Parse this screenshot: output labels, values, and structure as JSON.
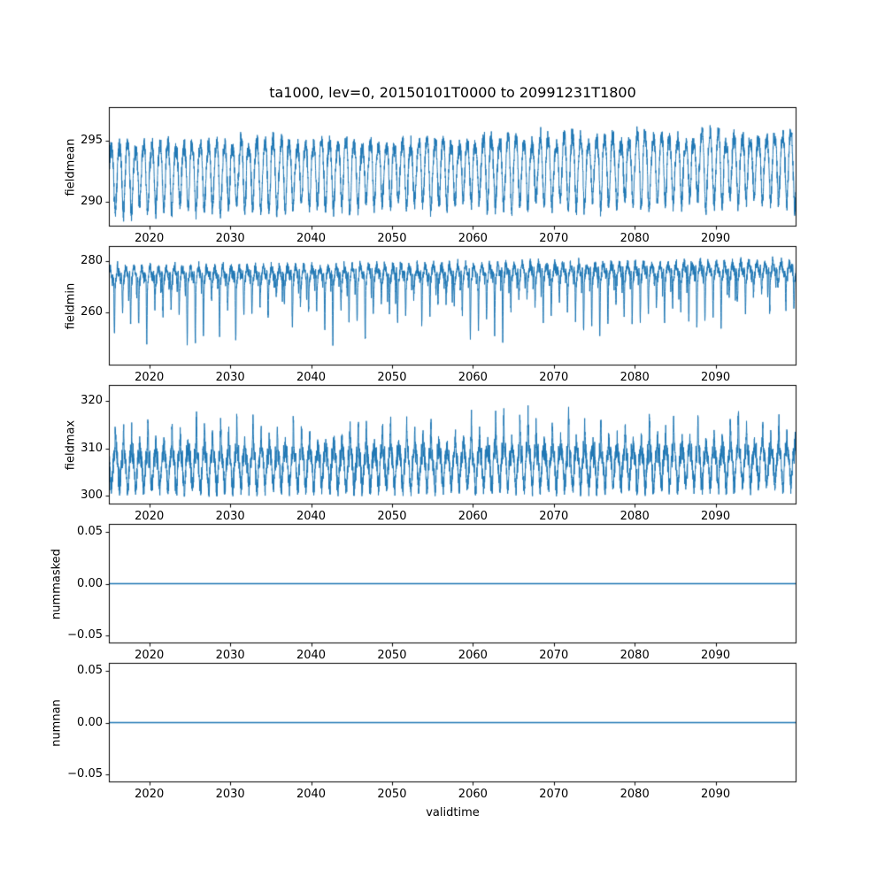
{
  "chart_data": {
    "type": "line",
    "title": "ta1000, lev=0, 20150101T0000 to 20991231T1800",
    "xlabel": "validtime",
    "x_range": [
      2015,
      2100
    ],
    "x_ticks": [
      2020,
      2030,
      2040,
      2050,
      2060,
      2070,
      2080,
      2090
    ],
    "x_tick_labels": [
      "2020",
      "2030",
      "2040",
      "2050",
      "2060",
      "2070",
      "2080",
      "2090"
    ],
    "line_color": "#1f77b4",
    "background_color": "#ffffff",
    "grid": false,
    "legend": "none",
    "subplots": [
      {
        "ylabel": "fieldmean",
        "y_ticks": [
          290,
          295
        ],
        "y_tick_labels": [
          "290",
          "295"
        ],
        "ylim": [
          288.0,
          297.7
        ],
        "approx_range": [
          288.3,
          297.5
        ],
        "description": "dense annual oscillation around ~292.5 K, peaks ~295-297, troughs ~289-290, slight upward trend over 2015-2100",
        "synthesis": {
          "pattern": "seasonal",
          "baseline": 292.3,
          "trend_per_year": 0.009,
          "annual_amplitude": 2.55,
          "amplitude_jitter": 0.5,
          "semiannual_amplitude": 0.45,
          "noise": 0.7,
          "seed": 11
        }
      },
      {
        "ylabel": "fieldmin",
        "y_ticks": [
          260,
          280
        ],
        "y_tick_labels": [
          "260",
          "280"
        ],
        "ylim": [
          239.5,
          285.8
        ],
        "approx_range": [
          242,
          283
        ],
        "description": "oscillation mostly 267-282 with sharp annual downward spikes reaching ~242-260; spikes become shallower toward 2100",
        "synthesis": {
          "pattern": "seasonal-dips",
          "baseline": 274.3,
          "trend_per_year": 0.025,
          "annual_amplitude": 2.1,
          "semiannual_amplitude": 1.3,
          "noise": 2.2,
          "dip_depth_min": 8,
          "dip_depth_max": 30,
          "dip_sharpness": 14,
          "secondary_dip_max": 12,
          "secondary_dip_sharpness": 24,
          "dip_decay": 0.35,
          "seed": 22
        }
      },
      {
        "ylabel": "fieldmax",
        "y_ticks": [
          300,
          310,
          320
        ],
        "y_tick_labels": [
          "300",
          "310",
          "320"
        ],
        "ylim": [
          298.2,
          323.4
        ],
        "approx_range": [
          299.5,
          322.5
        ],
        "description": "dense band ~300-313 with flat floor near 300 and narrow annual spikes up to ~315-322",
        "synthesis": {
          "pattern": "seasonal-spikes",
          "baseline": 306.0,
          "trend_per_year": 0.008,
          "annual_amplitude": 3.1,
          "semiannual_amplitude": 1.5,
          "noise": 2.4,
          "spike_height_min": 3,
          "spike_height_max": 9.5,
          "spike_sharpness": 10,
          "floor": 299.8,
          "seed": 33
        }
      },
      {
        "ylabel": "nummasked",
        "y_ticks": [
          -0.05,
          0,
          0.05
        ],
        "y_tick_labels": [
          "−0.05",
          "0.00",
          "0.05"
        ],
        "ylim": [
          -0.0575,
          0.0575
        ],
        "constant_value": 0,
        "description": "constant zero line across full time range",
        "synthesis": {
          "pattern": "constant",
          "value": 0
        }
      },
      {
        "ylabel": "numnan",
        "y_ticks": [
          -0.05,
          0,
          0.05
        ],
        "y_tick_labels": [
          "−0.05",
          "0.00",
          "0.05"
        ],
        "ylim": [
          -0.0575,
          0.0575
        ],
        "constant_value": 0,
        "description": "constant zero line across full time range",
        "synthesis": {
          "pattern": "constant",
          "value": 0
        }
      }
    ]
  }
}
